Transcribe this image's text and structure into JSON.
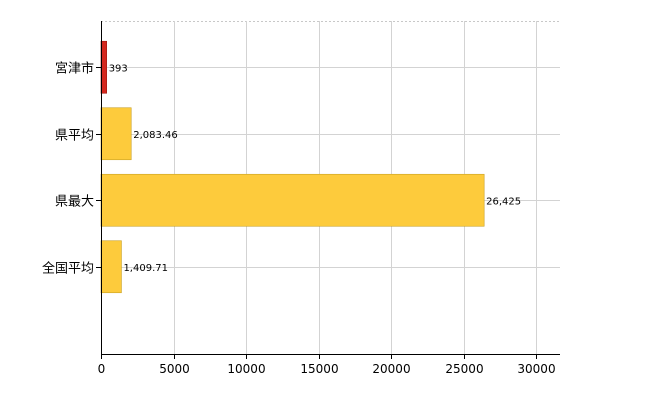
{
  "chart_data": {
    "type": "bar",
    "orientation": "horizontal",
    "categories": [
      "宮津市",
      "県平均",
      "県最大",
      "全国平均"
    ],
    "values": [
      393,
      2083.46,
      26425,
      1409.71
    ],
    "value_labels": [
      "393",
      "2,083.46",
      "26,425",
      "1,409.71"
    ],
    "bar_colors": [
      "#d4281e",
      "#fdcb3c",
      "#fdcb3c",
      "#fdcb3c"
    ],
    "bar_border": "#c8a024",
    "highlight_border": "#a01810",
    "title": "",
    "xlabel": "",
    "ylabel": "",
    "xlim": [
      0,
      30000
    ],
    "x_ticks": [
      0,
      5000,
      10000,
      15000,
      20000,
      25000,
      30000
    ],
    "x_tick_labels": [
      "0",
      "5000",
      "10000",
      "15000",
      "20000",
      "25000",
      "30000"
    ],
    "grid": true,
    "legend": "none"
  }
}
